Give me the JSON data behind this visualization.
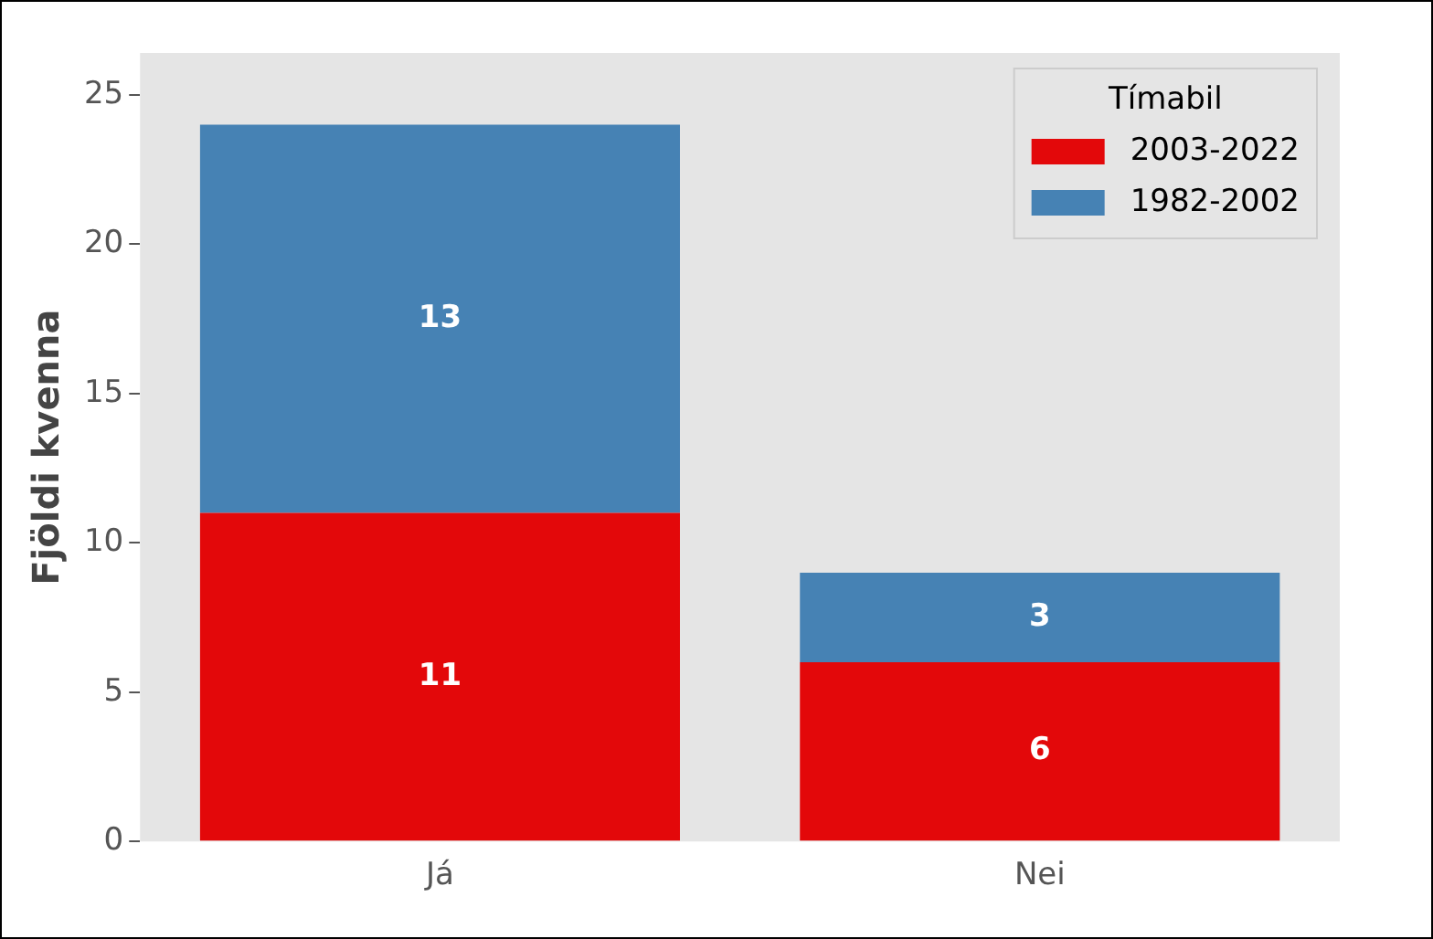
{
  "chart_data": {
    "type": "bar",
    "stacked": true,
    "ylabel": "Fjöldi kvenna",
    "legend_title": "Tímabil",
    "legend": "top right",
    "grid": false,
    "data_labels": true,
    "categories": [
      "Já",
      "Nei"
    ],
    "series": [
      {
        "name": "2003-2022",
        "color": "#e3080a",
        "values": [
          11,
          6
        ]
      },
      {
        "name": "1982-2002",
        "color": "#4682b4",
        "values": [
          13,
          3
        ]
      }
    ],
    "ylim": [
      0,
      26.4
    ],
    "yticks": [
      0,
      5,
      10,
      15,
      20,
      25
    ]
  }
}
